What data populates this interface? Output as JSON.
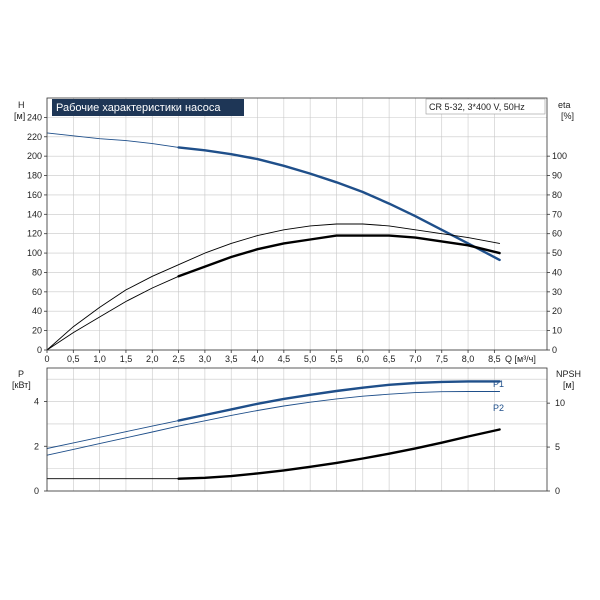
{
  "chart_data": [
    {
      "type": "line",
      "title": "Рабочие характеристики насоса",
      "subtitle": "CR 5-32, 3*400 V, 50Hz",
      "xlabel": "Q [м³/ч]",
      "x_unit": "Q [м³/ч]",
      "x_ticks": [
        "0",
        "0,5",
        "1,0",
        "1,5",
        "2,0",
        "2,5",
        "3,0",
        "3,5",
        "4,0",
        "4,5",
        "5,0",
        "5,5",
        "6,0",
        "6,5",
        "7,0",
        "7,5",
        "8,0",
        "8,5"
      ],
      "xlim": [
        0,
        9.5
      ],
      "left_axis": {
        "label": "H",
        "unit": "[м]",
        "ylim": [
          0,
          260
        ],
        "ticks": [
          "0",
          "20",
          "40",
          "60",
          "80",
          "100",
          "120",
          "140",
          "160",
          "180",
          "200",
          "220",
          "240"
        ]
      },
      "right_axis": {
        "label": "eta",
        "unit": "[%]",
        "ylim": [
          0,
          130
        ],
        "ticks": [
          "0",
          "10",
          "20",
          "30",
          "40",
          "50",
          "60",
          "70",
          "80",
          "90",
          "100"
        ]
      },
      "series": [
        {
          "axis": "left",
          "style": "thin",
          "color": "#1f4f8a",
          "x": [
            0,
            0.5,
            1.0,
            1.5,
            2.0,
            2.5
          ],
          "y": [
            224,
            221,
            218,
            216,
            213,
            209
          ]
        },
        {
          "axis": "left",
          "style": "thick",
          "color": "#1f4f8a",
          "x": [
            2.5,
            3.0,
            3.5,
            4.0,
            4.5,
            5.0,
            5.5,
            6.0,
            6.5,
            7.0,
            7.5,
            8.0,
            8.6
          ],
          "y": [
            209,
            206,
            202,
            197,
            190,
            182,
            173,
            163,
            151,
            138,
            124,
            110,
            93
          ]
        },
        {
          "axis": "right",
          "style": "thin",
          "color": "#000000",
          "x": [
            0,
            0.5,
            1.0,
            1.5,
            2.0,
            2.5,
            3.0,
            3.5,
            4.0,
            4.5,
            5.0,
            5.5,
            6.0,
            6.5,
            7.0,
            7.5,
            8.0,
            8.6
          ],
          "y": [
            0,
            12,
            22,
            31,
            38,
            44,
            50,
            55,
            59,
            62,
            64,
            65,
            65,
            64,
            62,
            60,
            58,
            55
          ]
        },
        {
          "axis": "right",
          "style": "thin",
          "color": "#000000",
          "x": [
            0,
            0.5,
            1.0,
            1.5,
            2.0,
            2.5
          ],
          "y": [
            0,
            9,
            17,
            25,
            32,
            38
          ]
        },
        {
          "axis": "right",
          "style": "thick",
          "color": "#000000",
          "x": [
            2.5,
            3.0,
            3.5,
            4.0,
            4.5,
            5.0,
            5.5,
            6.0,
            6.5,
            7.0,
            7.5,
            8.0,
            8.6
          ],
          "y": [
            38,
            43,
            48,
            52,
            55,
            57,
            59,
            59,
            59,
            58,
            56,
            54,
            50
          ]
        }
      ]
    },
    {
      "type": "line",
      "xlim": [
        0,
        9.5
      ],
      "left_axis": {
        "label": "P",
        "unit": "[кВт]",
        "ylim": [
          0,
          5.5
        ],
        "ticks": [
          "0",
          "2",
          "4"
        ]
      },
      "right_axis": {
        "label": "NPSH",
        "unit": "[м]",
        "ylim": [
          0,
          14
        ],
        "ticks": [
          "0",
          "5",
          "10"
        ]
      },
      "series": [
        {
          "name": "P1",
          "axis": "left",
          "style": "thin",
          "color": "#1f4f8a",
          "x": [
            0,
            0.5,
            1.0,
            1.5,
            2.0,
            2.5
          ],
          "y": [
            1.9,
            2.15,
            2.4,
            2.65,
            2.9,
            3.15
          ]
        },
        {
          "name": "P1",
          "axis": "left",
          "style": "thick",
          "color": "#1f4f8a",
          "x": [
            2.5,
            3.0,
            3.5,
            4.0,
            4.5,
            5.0,
            5.5,
            6.0,
            6.5,
            7.0,
            7.5,
            8.0,
            8.6
          ],
          "y": [
            3.15,
            3.4,
            3.65,
            3.9,
            4.12,
            4.3,
            4.47,
            4.62,
            4.75,
            4.83,
            4.88,
            4.9,
            4.9
          ]
        },
        {
          "name": "P2",
          "axis": "left",
          "style": "thin",
          "color": "#1f4f8a",
          "x": [
            0,
            0.5,
            1.0,
            1.5,
            2.0,
            2.5,
            3.0,
            3.5,
            4.0,
            4.5,
            5.0,
            5.5,
            6.0,
            6.5,
            7.0,
            7.5,
            8.0,
            8.6
          ],
          "y": [
            1.6,
            1.86,
            2.12,
            2.38,
            2.64,
            2.9,
            3.14,
            3.38,
            3.6,
            3.8,
            3.97,
            4.12,
            4.24,
            4.33,
            4.4,
            4.44,
            4.45,
            4.45
          ]
        },
        {
          "axis": "right",
          "style": "thin",
          "color": "#000000",
          "x": [
            0,
            0.5,
            1.0,
            1.5,
            2.0,
            2.5
          ],
          "y": [
            1.4,
            1.4,
            1.4,
            1.4,
            1.4,
            1.4
          ]
        },
        {
          "axis": "right",
          "style": "thick",
          "color": "#000000",
          "x": [
            2.5,
            3.0,
            3.5,
            4.0,
            4.5,
            5.0,
            5.5,
            6.0,
            6.5,
            7.0,
            7.5,
            8.0,
            8.6
          ],
          "y": [
            1.4,
            1.5,
            1.7,
            2.0,
            2.35,
            2.75,
            3.2,
            3.7,
            4.25,
            4.85,
            5.5,
            6.2,
            7.0
          ]
        }
      ]
    }
  ],
  "colors": {
    "title_bg": "#1e3656",
    "blue": "#1f4f8a",
    "black": "#000000",
    "grid": "#c8c8c8"
  }
}
